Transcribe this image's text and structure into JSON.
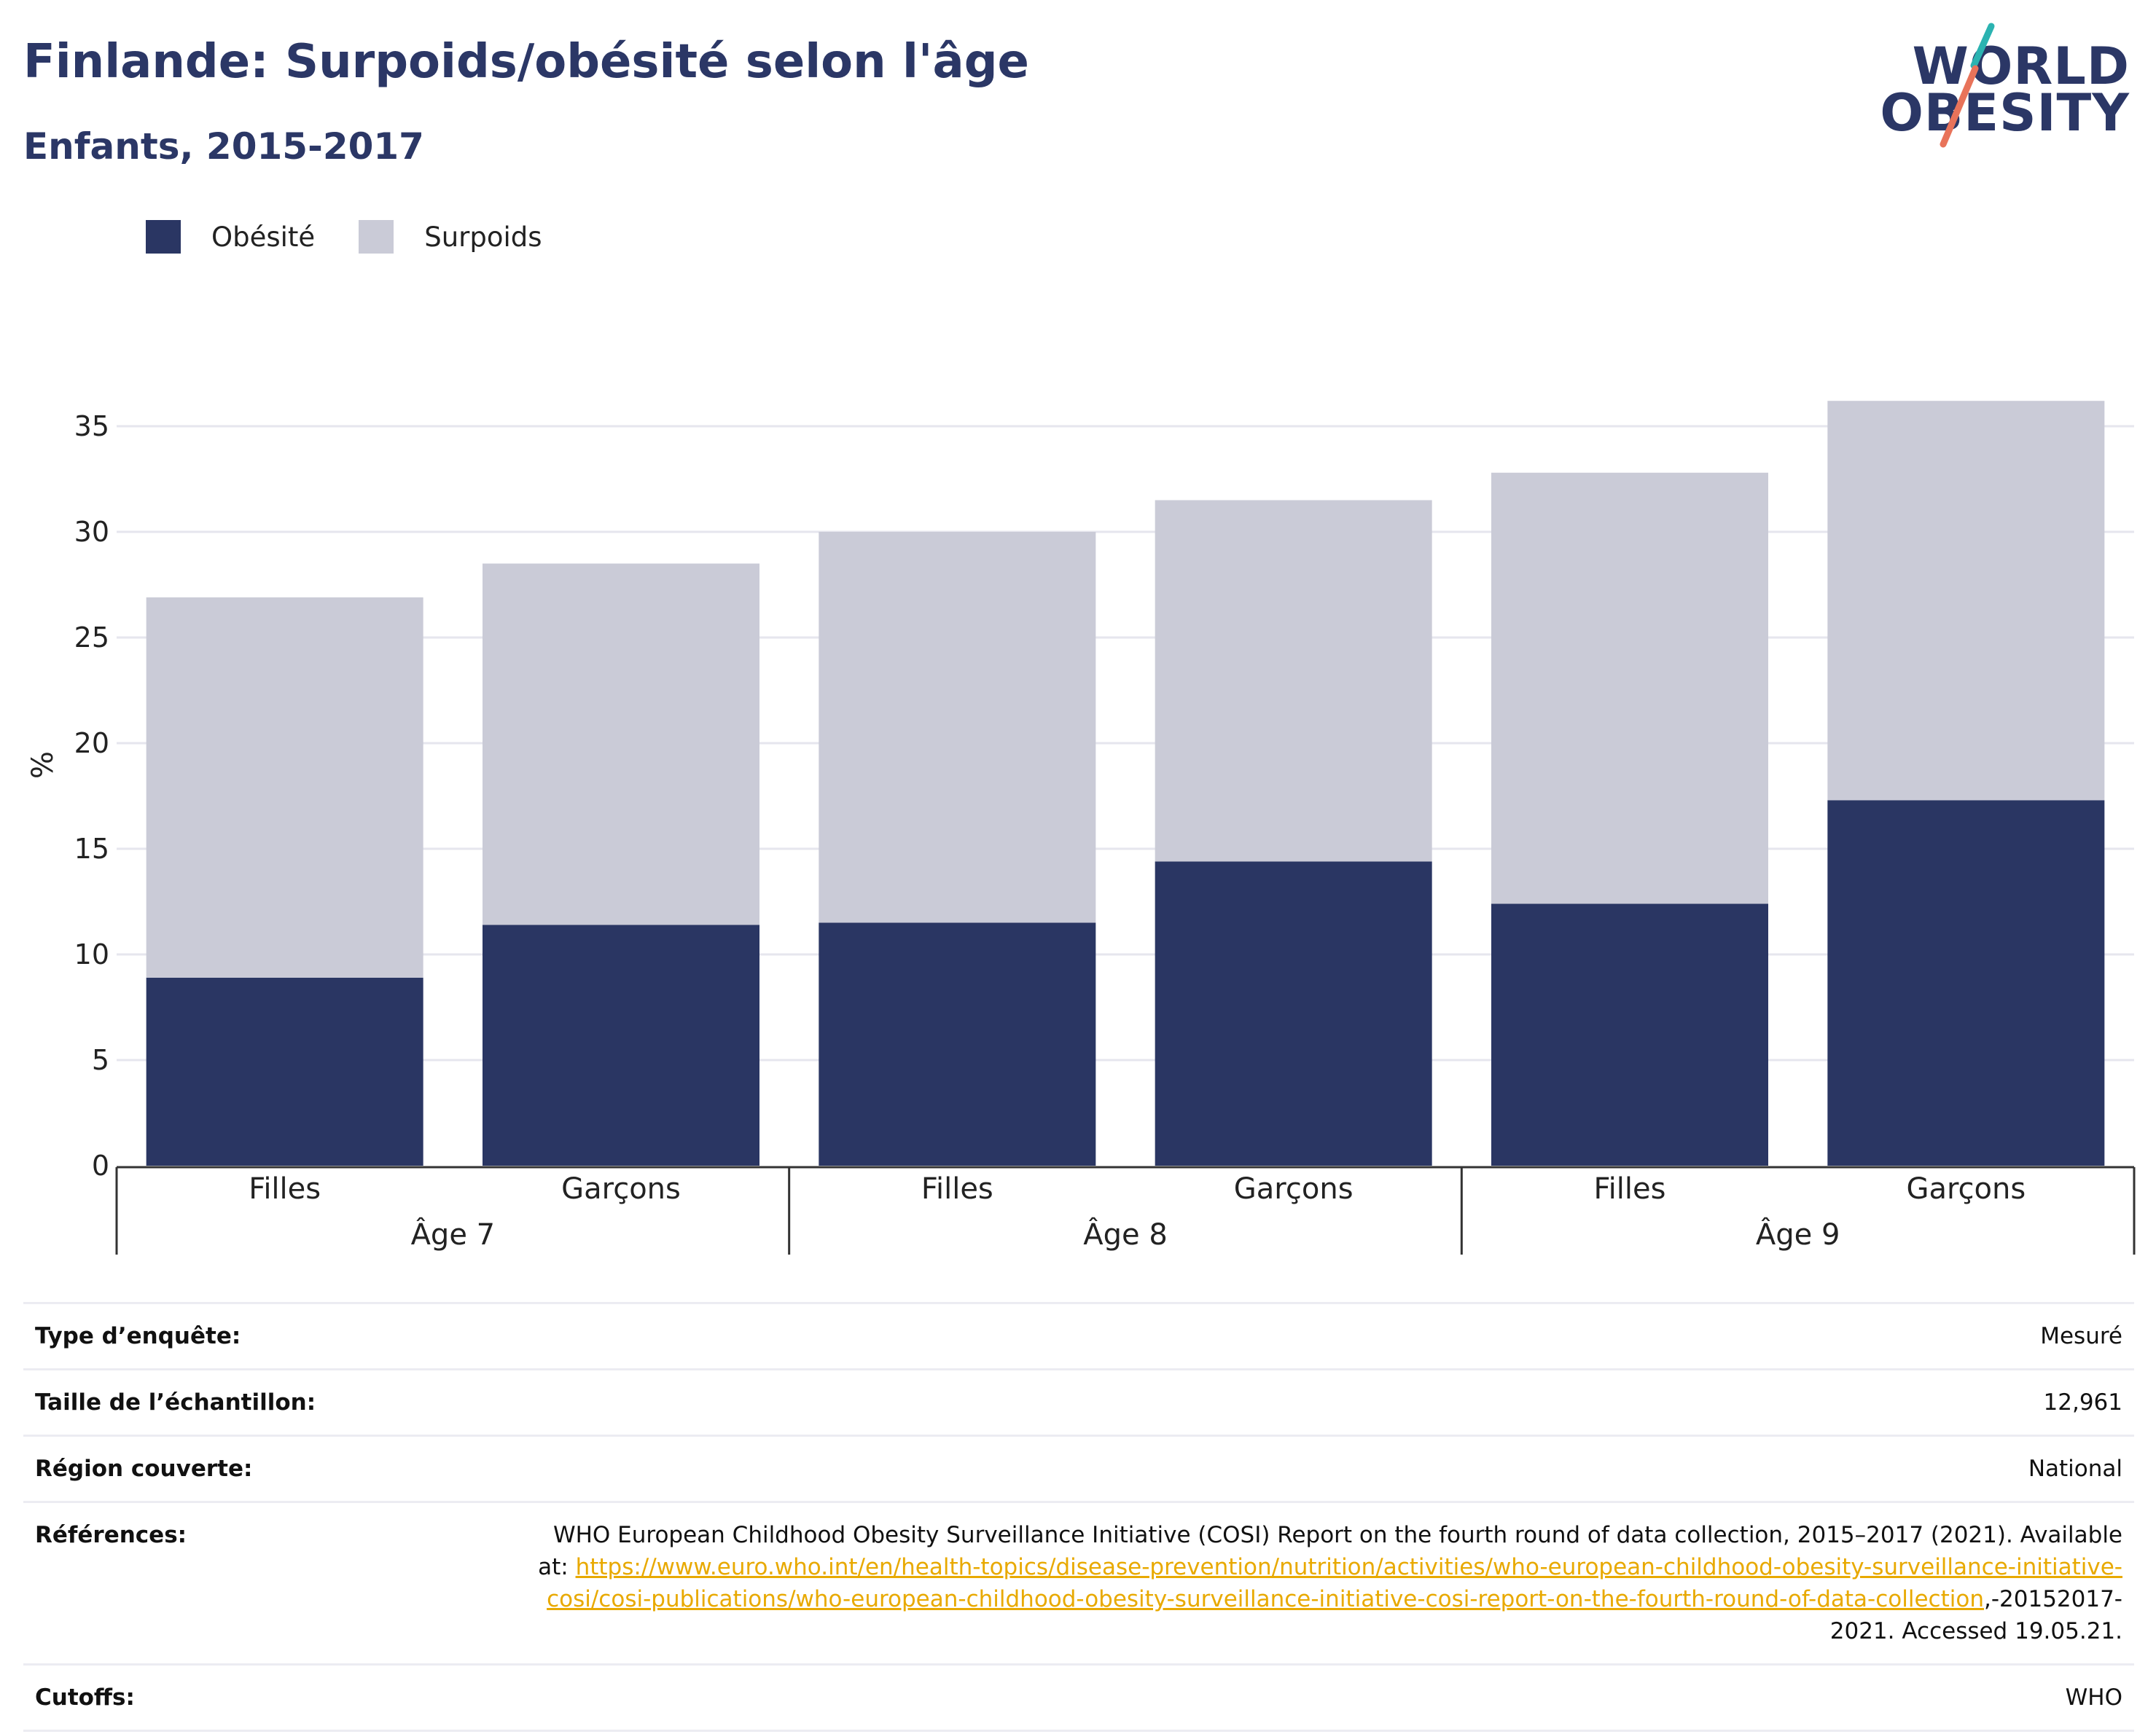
{
  "header": {
    "title": "Finlande: Surpoids/obésité selon l'âge",
    "subtitle": "Enfants, 2015-2017"
  },
  "logo": {
    "line1": "WORLD",
    "line2": "OBESITY",
    "accent_colors": [
      "#2bb3b1",
      "#e8735a"
    ]
  },
  "colors": {
    "obesity": "#2a3663",
    "overweight": "#cacbd7",
    "grid": "#e6e6ee",
    "axis": "#333333",
    "link": "#e8a900"
  },
  "legend": {
    "items": [
      {
        "label": "Obésité",
        "color": "#2a3663"
      },
      {
        "label": "Surpoids",
        "color": "#cacbd7"
      }
    ]
  },
  "chart_data": {
    "type": "bar",
    "stacked": true,
    "ylabel": "%",
    "ylim": [
      0,
      38
    ],
    "yticks": [
      0,
      5,
      10,
      15,
      20,
      25,
      30,
      35
    ],
    "grid": true,
    "legend_position": "top-left",
    "groups": [
      {
        "label": "Âge 7",
        "categories": [
          "Filles",
          "Garçons"
        ]
      },
      {
        "label": "Âge 8",
        "categories": [
          "Filles",
          "Garçons"
        ]
      },
      {
        "label": "Âge 9",
        "categories": [
          "Filles",
          "Garçons"
        ]
      }
    ],
    "series": [
      {
        "name": "Obésité",
        "values": [
          8.9,
          11.4,
          11.5,
          14.4,
          12.4,
          17.3
        ]
      },
      {
        "name": "Surpoids",
        "values": [
          18.0,
          17.1,
          18.5,
          17.1,
          20.4,
          18.9
        ]
      }
    ],
    "totals": [
      26.9,
      28.5,
      30.0,
      31.5,
      32.8,
      36.2
    ]
  },
  "meta": {
    "rows": [
      {
        "label": "Type d’enquête:",
        "value": "Mesuré"
      },
      {
        "label": "Taille de l’échantillon:",
        "value": "12,961"
      },
      {
        "label": "Région couverte:",
        "value": "National"
      }
    ],
    "references": {
      "label": "Références:",
      "text_before": "WHO European Childhood Obesity Surveillance Initiative (COSI) Report on the fourth round of data collection, 2015–2017 (2021). Available at: ",
      "link": "https://www.euro.who.int/en/health-topics/disease-prevention/nutrition/activities/who-european-childhood-obesity-surveillance-initiative-cosi/cosi-publications/who-european-childhood-obesity-surveillance-initiative-cosi-report-on-the-fourth-round-of-data-collection",
      "text_after": ",-20152017-2021. Accessed 19.05.21."
    },
    "cutoffs": {
      "label": "Cutoffs:",
      "value": "WHO"
    }
  }
}
